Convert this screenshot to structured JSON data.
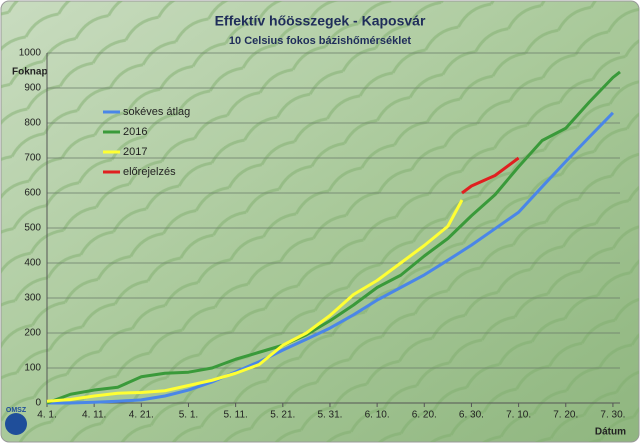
{
  "chart_data": {
    "type": "line",
    "title": "Effektív hőösszegek - Kaposvár",
    "subtitle": "10 Celsius fokos bázishőmérséklet",
    "y_label": "Foknap",
    "x_label": "Dátum",
    "logo": "OMSZ",
    "xlim": [
      0,
      121.5
    ],
    "ylim": [
      0,
      1000
    ],
    "xticks": [
      {
        "value": 0,
        "label": "4. 1."
      },
      {
        "value": 10,
        "label": "4. 11."
      },
      {
        "value": 20,
        "label": "4. 21."
      },
      {
        "value": 30,
        "label": "5. 1."
      },
      {
        "value": 40,
        "label": "5. 11."
      },
      {
        "value": 50,
        "label": "5. 21."
      },
      {
        "value": 60,
        "label": "5. 31."
      },
      {
        "value": 70,
        "label": "6. 10."
      },
      {
        "value": 80,
        "label": "6. 20."
      },
      {
        "value": 90,
        "label": "6. 30."
      },
      {
        "value": 100,
        "label": "7. 10."
      },
      {
        "value": 110,
        "label": "7. 20."
      },
      {
        "value": 120,
        "label": "7. 30."
      }
    ],
    "yticks": [
      0,
      100,
      200,
      300,
      400,
      500,
      600,
      700,
      800,
      900,
      1000
    ],
    "grid": true,
    "legend": "upper-left",
    "series": [
      {
        "name": "sokéves átlag",
        "color": "#4a86e8",
        "x": [
          0,
          5,
          10,
          15,
          20,
          25,
          30,
          35,
          40,
          45,
          50,
          55,
          60,
          65,
          70,
          75,
          80,
          85,
          90,
          95,
          100,
          105,
          110,
          115,
          120
        ],
        "values": [
          0,
          0,
          2,
          5,
          9,
          20,
          37,
          60,
          89,
          118,
          151,
          182,
          214,
          252,
          294,
          330,
          366,
          408,
          451,
          498,
          545,
          618,
          690,
          760,
          829
        ]
      },
      {
        "name": "2016",
        "color": "#3a9a3a",
        "x": [
          0,
          5,
          10,
          15,
          20,
          25,
          30,
          35,
          40,
          45,
          50,
          55,
          60,
          65,
          70,
          75,
          80,
          85,
          90,
          95,
          100,
          105,
          110,
          115,
          120,
          121.5
        ],
        "values": [
          0,
          25,
          37,
          45,
          75,
          85,
          88,
          100,
          125,
          145,
          165,
          195,
          235,
          280,
          330,
          365,
          420,
          470,
          535,
          595,
          675,
          750,
          785,
          860,
          930,
          946
        ]
      },
      {
        "name": "2017",
        "color": "#ffff33",
        "x": [
          0,
          5,
          10,
          15,
          20,
          25,
          30,
          35,
          40,
          45,
          50,
          55,
          60,
          65,
          70,
          75,
          80,
          85,
          88
        ],
        "values": [
          5,
          10,
          20,
          28,
          30,
          35,
          50,
          65,
          85,
          110,
          165,
          200,
          250,
          310,
          350,
          400,
          450,
          505,
          580
        ]
      },
      {
        "name": "előrejelzés",
        "color": "#e02020",
        "x": [
          88,
          90,
          95,
          100
        ],
        "values": [
          600,
          620,
          650,
          700
        ]
      }
    ]
  }
}
